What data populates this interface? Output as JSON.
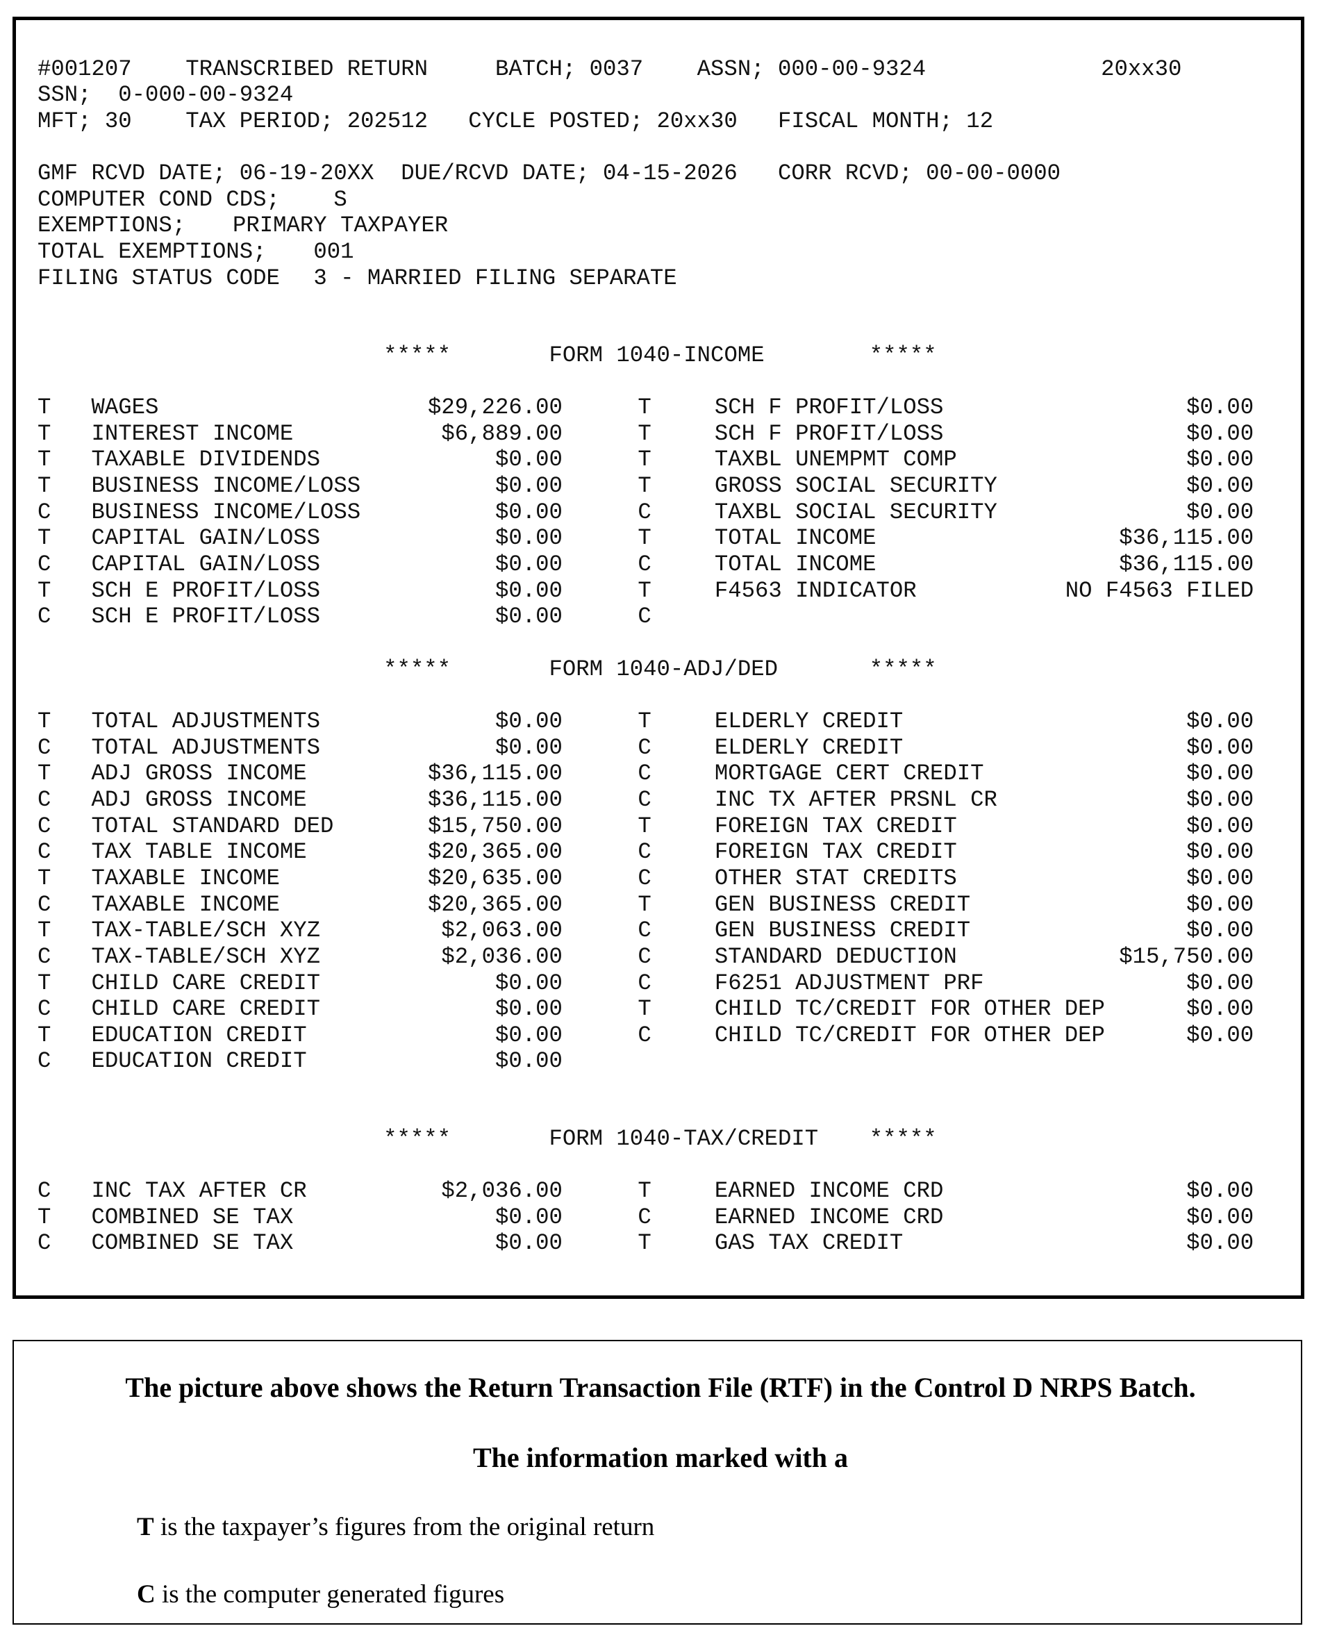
{
  "header": {
    "line1": {
      "record": "#001207",
      "title": "TRANSCRIBED RETURN",
      "batch": "BATCH; 0037",
      "assn": "ASSN; 000-00-9324",
      "cycle": "20xx30"
    },
    "line2": {
      "ssn": "SSN;  0-000-00-9324"
    },
    "line3": {
      "mft": "MFT; 30",
      "tax_period": "TAX PERIOD; 202512",
      "cycle_posted": "CYCLE POSTED; 20xx30",
      "fiscal_month": "FISCAL MONTH; 12"
    },
    "line4": {
      "gmf": "GMF RCVD DATE; 06-19-20XX",
      "due": "DUE/RCVD DATE; 04-15-2026",
      "corr": "CORR RCVD; 00-00-0000"
    },
    "line5": {
      "label": "COMPUTER COND CDS;",
      "value": "S"
    },
    "line6": {
      "label": "EXEMPTIONS;",
      "value": "PRIMARY TAXPAYER"
    },
    "line7": {
      "label": "TOTAL EXEMPTIONS;",
      "value": "001"
    },
    "line8": {
      "label": "FILING STATUS CODE",
      "value": "3 - MARRIED FILING SEPARATE"
    }
  },
  "sections": [
    {
      "stars": "*****",
      "title": "FORM 1040-INCOME",
      "rows": [
        [
          "T",
          "WAGES",
          "$29,226.00",
          "T",
          "SCH F PROFIT/LOSS",
          "$0.00"
        ],
        [
          "T",
          "INTEREST INCOME",
          "$6,889.00",
          "T",
          "SCH F PROFIT/LOSS",
          "$0.00"
        ],
        [
          "T",
          "TAXABLE DIVIDENDS",
          "$0.00",
          "T",
          "TAXBL UNEMPMT COMP",
          "$0.00"
        ],
        [
          "T",
          "BUSINESS INCOME/LOSS",
          "$0.00",
          "T",
          "GROSS SOCIAL SECURITY",
          "$0.00"
        ],
        [
          "C",
          "BUSINESS INCOME/LOSS",
          "$0.00",
          "C",
          "TAXBL SOCIAL SECURITY",
          "$0.00"
        ],
        [
          "T",
          "CAPITAL GAIN/LOSS",
          "$0.00",
          "T",
          "TOTAL INCOME",
          "$36,115.00"
        ],
        [
          "C",
          "CAPITAL GAIN/LOSS",
          "$0.00",
          "C",
          "TOTAL INCOME",
          "$36,115.00"
        ],
        [
          "T",
          "SCH E PROFIT/LOSS",
          "$0.00",
          "T",
          "F4563 INDICATOR",
          "NO F4563 FILED"
        ],
        [
          "C",
          "SCH E PROFIT/LOSS",
          "$0.00",
          "C",
          "",
          ""
        ]
      ]
    },
    {
      "stars": "*****",
      "title": "FORM 1040-ADJ/DED",
      "rows": [
        [
          "T",
          "TOTAL ADJUSTMENTS",
          "$0.00",
          "T",
          "ELDERLY CREDIT",
          "$0.00"
        ],
        [
          "C",
          "TOTAL ADJUSTMENTS",
          "$0.00",
          "C",
          "ELDERLY CREDIT",
          "$0.00"
        ],
        [
          "T",
          "ADJ GROSS INCOME",
          "$36,115.00",
          "C",
          "MORTGAGE CERT CREDIT",
          "$0.00"
        ],
        [
          "C",
          "ADJ GROSS INCOME",
          "$36,115.00",
          "C",
          "INC TX AFTER PRSNL CR",
          "$0.00"
        ],
        [
          "C",
          "TOTAL STANDARD DED",
          "$15,750.00",
          "T",
          "FOREIGN TAX CREDIT",
          "$0.00"
        ],
        [
          "C",
          "TAX TABLE INCOME",
          "$20,365.00",
          "C",
          "FOREIGN TAX CREDIT",
          "$0.00"
        ],
        [
          "T",
          "TAXABLE INCOME",
          "$20,635.00",
          "C",
          "OTHER STAT CREDITS",
          "$0.00"
        ],
        [
          "C",
          "TAXABLE INCOME",
          "$20,365.00",
          "T",
          "GEN BUSINESS CREDIT",
          "$0.00"
        ],
        [
          "T",
          "TAX-TABLE/SCH XYZ",
          "$2,063.00",
          "C",
          "GEN BUSINESS CREDIT",
          "$0.00"
        ],
        [
          "C",
          "TAX-TABLE/SCH XYZ",
          "$2,036.00",
          "C",
          "STANDARD DEDUCTION",
          "$15,750.00"
        ],
        [
          "T",
          "CHILD CARE CREDIT",
          "$0.00",
          "C",
          "F6251 ADJUSTMENT PRF",
          "$0.00"
        ],
        [
          "C",
          "CHILD CARE CREDIT",
          "$0.00",
          "T",
          "CHILD TC/CREDIT FOR OTHER DEP",
          "$0.00"
        ],
        [
          "T",
          "EDUCATION CREDIT",
          "$0.00",
          "C",
          "CHILD TC/CREDIT FOR OTHER DEP",
          "$0.00"
        ],
        [
          "C",
          "EDUCATION CREDIT",
          "$0.00",
          "",
          "",
          ""
        ]
      ]
    },
    {
      "stars": "*****",
      "title": "FORM 1040-TAX/CREDIT",
      "rows": [
        [
          "C",
          "INC TAX AFTER CR",
          "$2,036.00",
          "T",
          "EARNED INCOME CRD",
          "$0.00"
        ],
        [
          "T",
          "COMBINED SE TAX",
          "$0.00",
          "C",
          "EARNED INCOME CRD",
          "$0.00"
        ],
        [
          "C",
          "COMBINED SE TAX",
          "$0.00",
          "T",
          "GAS TAX CREDIT",
          "$0.00"
        ]
      ]
    }
  ],
  "note": {
    "line1": "The picture above shows the Return Transaction File (RTF) in the Control D NRPS Batch.",
    "line2": "The information marked with a",
    "t_letter": "T",
    "t_text": " is the taxpayer’s figures from the original return",
    "c_letter": "C",
    "c_text": " is the computer generated figures"
  }
}
